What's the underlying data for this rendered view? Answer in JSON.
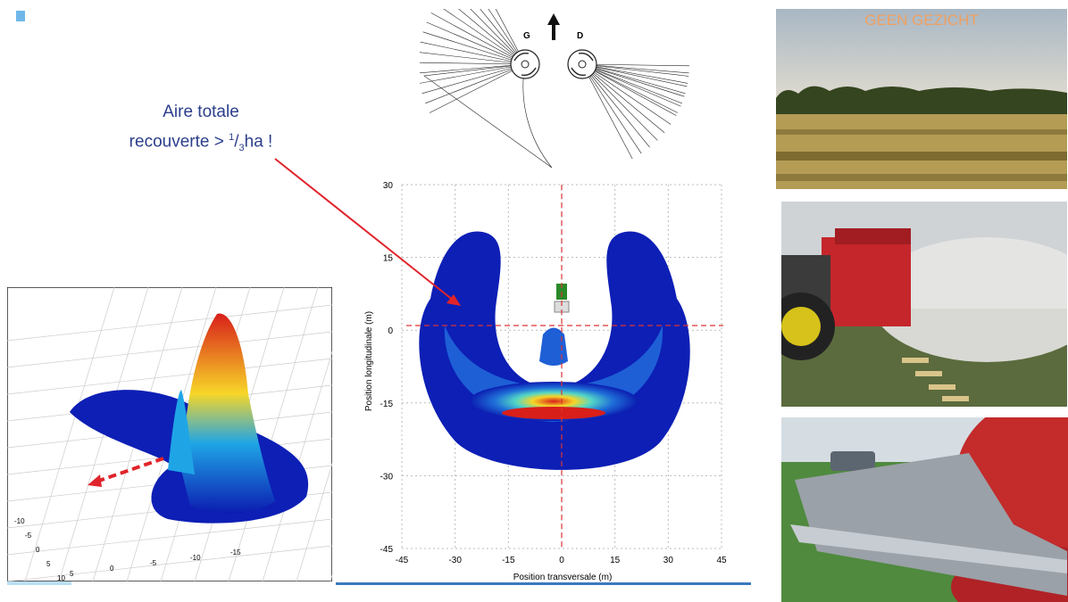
{
  "annotation": {
    "line1": "Aire totale",
    "line2_prefix": "recouverte > ",
    "frac_num": "1",
    "frac_den": "3",
    "line2_suffix": "ha !"
  },
  "disc_diagram": {
    "left_label": "G",
    "right_label": "D"
  },
  "distribution_plot": {
    "xlabel": "Position transversale (m)",
    "ylabel": "Position longitudinale (m)",
    "x_ticks": [
      "-45",
      "-30",
      "-15",
      "0",
      "15",
      "30",
      "45"
    ],
    "y_ticks": [
      "30",
      "15",
      "0",
      "-15",
      "-30",
      "-45"
    ]
  },
  "surface_plot": {
    "x_ticks": [
      "-15",
      "-10",
      "-5",
      "0",
      "5"
    ],
    "y_ticks": [
      "-10",
      "-5",
      "0",
      "5",
      "10"
    ]
  },
  "photos": {
    "field_caption": "GEEN GEZICHT"
  },
  "colors": {
    "annotation_text": "#2b3e8c",
    "arrow": "#e0242b",
    "caption": "#f0a060",
    "accent_line": "#3a78c0"
  }
}
